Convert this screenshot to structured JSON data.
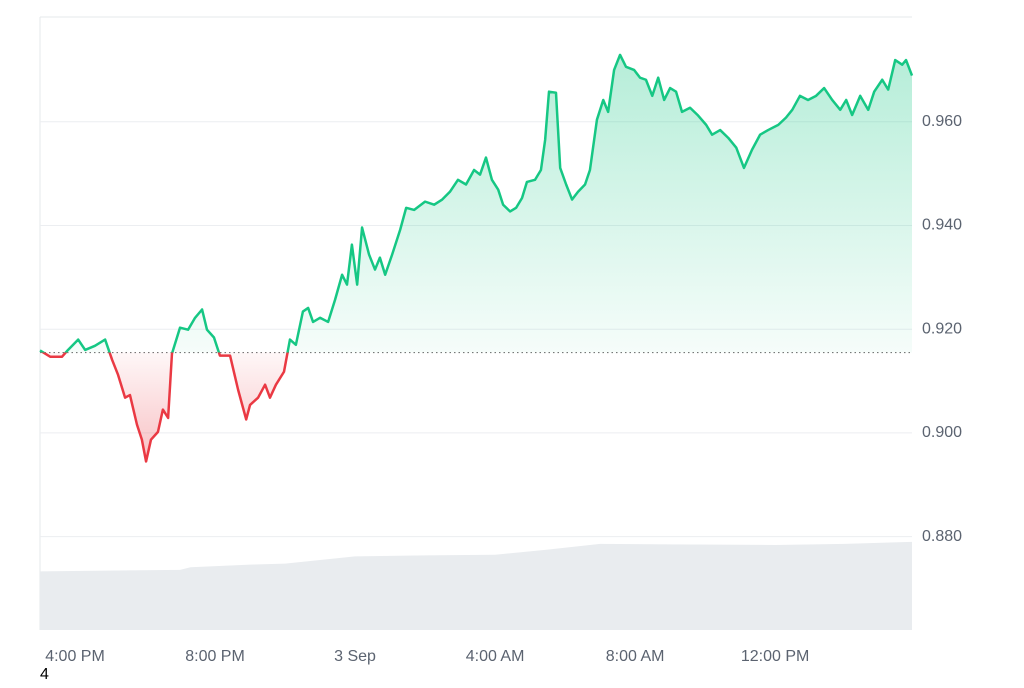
{
  "chart_data": {
    "type": "line",
    "color": "#16c784",
    "color_down": "#ea3943",
    "baseline": 0.9155,
    "grid": true,
    "xlim": [
      -1,
      23.91
    ],
    "xticks": [
      {
        "value": 0,
        "label": "4:00 PM"
      },
      {
        "value": 4,
        "label": "8:00 PM"
      },
      {
        "value": 8,
        "label": "3 Sep"
      },
      {
        "value": 12,
        "label": "4:00 AM"
      },
      {
        "value": 16,
        "label": "8:00 AM"
      },
      {
        "value": 20,
        "label": "12:00 PM"
      }
    ],
    "ylim": [
      0.862,
      0.9802
    ],
    "yticks": [
      {
        "value": 0.88,
        "label": "0.880"
      },
      {
        "value": 0.9,
        "label": "0.900"
      },
      {
        "value": 0.92,
        "label": "0.920"
      },
      {
        "value": 0.94,
        "label": "0.940"
      },
      {
        "value": 0.96,
        "label": "0.960"
      }
    ],
    "x": [
      -1.0,
      -0.71,
      -0.37,
      -0.2,
      0.09,
      0.29,
      0.57,
      0.86,
      1.06,
      1.23,
      1.43,
      1.57,
      1.77,
      1.91,
      2.03,
      2.17,
      2.37,
      2.51,
      2.66,
      2.77,
      3.0,
      3.23,
      3.43,
      3.63,
      3.77,
      3.97,
      4.14,
      4.43,
      4.66,
      4.89,
      5.0,
      5.23,
      5.43,
      5.57,
      5.74,
      5.97,
      6.14,
      6.31,
      6.51,
      6.66,
      6.8,
      7.0,
      7.23,
      7.43,
      7.63,
      7.77,
      7.91,
      8.06,
      8.2,
      8.4,
      8.57,
      8.71,
      8.86,
      9.06,
      9.29,
      9.46,
      9.69,
      10.0,
      10.26,
      10.49,
      10.71,
      10.94,
      11.17,
      11.4,
      11.57,
      11.74,
      11.91,
      12.09,
      12.23,
      12.43,
      12.6,
      12.77,
      12.91,
      13.14,
      13.31,
      13.43,
      13.54,
      13.74,
      13.86,
      14.03,
      14.2,
      14.37,
      14.57,
      14.71,
      14.91,
      15.09,
      15.23,
      15.4,
      15.57,
      15.74,
      15.97,
      16.14,
      16.31,
      16.49,
      16.66,
      16.83,
      17.0,
      17.17,
      17.34,
      17.57,
      17.8,
      18.03,
      18.2,
      18.43,
      18.66,
      18.89,
      19.11,
      19.34,
      19.57,
      19.8,
      20.09,
      20.31,
      20.49,
      20.71,
      20.94,
      21.17,
      21.4,
      21.63,
      21.86,
      22.03,
      22.2,
      22.43,
      22.66,
      22.83,
      23.06,
      23.23,
      23.43,
      23.63,
      23.74,
      23.91
    ],
    "values": [
      0.9159,
      0.9147,
      0.9147,
      0.916,
      0.918,
      0.916,
      0.9168,
      0.918,
      0.9141,
      0.9112,
      0.9068,
      0.9073,
      0.9016,
      0.8987,
      0.8945,
      0.8987,
      0.9002,
      0.9045,
      0.9029,
      0.9153,
      0.9203,
      0.9199,
      0.9222,
      0.9238,
      0.9199,
      0.9184,
      0.9149,
      0.9149,
      0.9083,
      0.9026,
      0.9054,
      0.9068,
      0.9093,
      0.9068,
      0.9093,
      0.9118,
      0.918,
      0.917,
      0.9234,
      0.9241,
      0.9214,
      0.9222,
      0.9214,
      0.9257,
      0.9305,
      0.9286,
      0.9363,
      0.9286,
      0.9396,
      0.9344,
      0.9315,
      0.9338,
      0.9305,
      0.9344,
      0.9392,
      0.9434,
      0.943,
      0.9446,
      0.944,
      0.945,
      0.9465,
      0.9488,
      0.9479,
      0.9507,
      0.9498,
      0.9531,
      0.9488,
      0.9469,
      0.944,
      0.9427,
      0.9434,
      0.9453,
      0.9484,
      0.9488,
      0.9507,
      0.9565,
      0.9658,
      0.9656,
      0.9511,
      0.9479,
      0.945,
      0.9465,
      0.9479,
      0.9507,
      0.9604,
      0.9642,
      0.9619,
      0.97,
      0.9729,
      0.9706,
      0.97,
      0.9685,
      0.9681,
      0.965,
      0.9685,
      0.9642,
      0.9665,
      0.9658,
      0.9619,
      0.9627,
      0.9612,
      0.9594,
      0.9575,
      0.9584,
      0.9569,
      0.955,
      0.9511,
      0.9546,
      0.9575,
      0.9584,
      0.9594,
      0.9608,
      0.9623,
      0.965,
      0.9642,
      0.965,
      0.9665,
      0.9642,
      0.9623,
      0.9642,
      0.9613,
      0.965,
      0.9623,
      0.9658,
      0.9681,
      0.9662,
      0.9719,
      0.971,
      0.9719,
      0.9689
    ],
    "volume": {
      "color": "#e9ecef",
      "x": [
        -1,
        3,
        3.3,
        5,
        6,
        8,
        10,
        12,
        13.5,
        15,
        17,
        20,
        22,
        23.91
      ],
      "values": [
        0.8733,
        0.8736,
        0.8741,
        0.8746,
        0.8748,
        0.8762,
        0.8764,
        0.8765,
        0.8775,
        0.8786,
        0.8785,
        0.8784,
        0.8786,
        0.879
      ]
    }
  },
  "page_marker": "4"
}
